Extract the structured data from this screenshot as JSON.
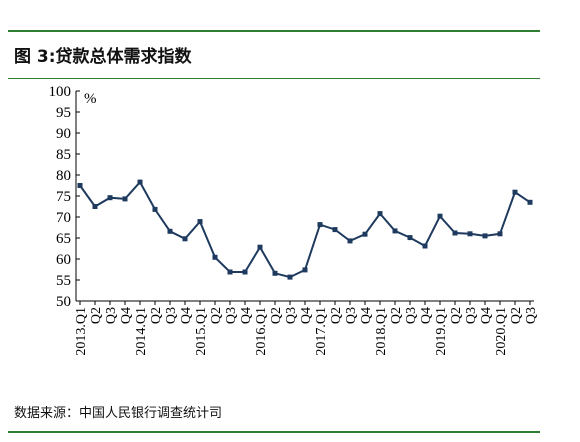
{
  "title": "图 3:贷款总体需求指数",
  "source": "数据来源：中国人民银行调查统计司",
  "chart_data": {
    "type": "line",
    "ylabel": "%",
    "ylim": [
      50,
      100
    ],
    "yticks": [
      50,
      55,
      60,
      65,
      70,
      75,
      80,
      85,
      90,
      95,
      100
    ],
    "grid": false,
    "legend": "none",
    "line_color": "#1f3a5f",
    "categories": [
      "2013.Q1",
      "Q2",
      "Q3",
      "Q4",
      "2014.Q1",
      "Q2",
      "Q3",
      "Q4",
      "2015.Q1",
      "Q2",
      "Q3",
      "Q4",
      "2016.Q1",
      "Q2",
      "Q3",
      "Q4",
      "2017.Q1",
      "Q2",
      "Q3",
      "Q4",
      "2018.Q1",
      "Q2",
      "Q3",
      "Q4",
      "2019.Q1",
      "Q2",
      "Q3",
      "Q4",
      "2020.Q1",
      "Q2",
      "Q3"
    ],
    "values": [
      77.5,
      72.5,
      74.6,
      74.3,
      78.3,
      71.8,
      66.6,
      64.8,
      68.9,
      60.4,
      56.9,
      56.9,
      62.8,
      56.6,
      55.7,
      57.4,
      68.2,
      67.0,
      64.3,
      65.9,
      70.8,
      66.7,
      65.1,
      63.1,
      70.2,
      66.2,
      66.0,
      65.5,
      66.0,
      75.9,
      73.5
    ]
  }
}
